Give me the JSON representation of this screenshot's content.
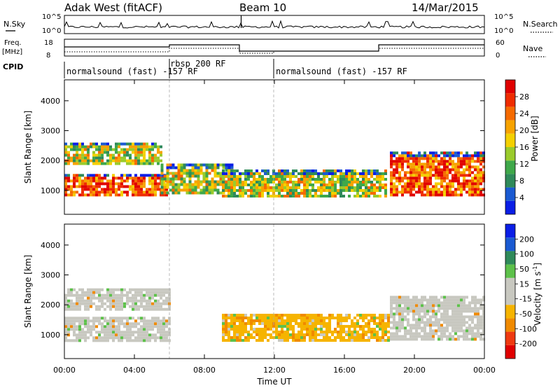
{
  "header": {
    "radar": "Adak West (fitACF)",
    "beam": "Beam 10",
    "date": "14/Mar/2015"
  },
  "top_panel": {
    "left_label": "N.Sky",
    "right_label": "N.Search",
    "left_ticks": [
      "10^5",
      "10^0"
    ],
    "right_ticks": [
      "10^5",
      "10^0"
    ]
  },
  "freq_panel": {
    "left_label_1": "Freq.",
    "left_label_2": "[MHz]",
    "right_label": "Nave",
    "left_ticks": [
      "18",
      "8"
    ],
    "right_ticks": [
      "60",
      "0"
    ]
  },
  "cpid_panel": {
    "label": "CPID",
    "segments": [
      {
        "text": "normalsound (fast) -157 RF",
        "start": 0
      },
      {
        "text": "rbsp 200 RF",
        "start": 6
      },
      {
        "text": "normalsound (fast) -157 RF",
        "start": 12
      }
    ]
  },
  "chart_data": [
    {
      "type": "heatmap",
      "name_in_image": "Power",
      "ylabel": "Slant Range [km]",
      "y_ticks": [
        "1000",
        "2000",
        "3000",
        "4000"
      ],
      "ylim": [
        200,
        4700
      ],
      "x_range_hours": [
        0,
        24
      ],
      "colorbar": {
        "label": "Power [dB]",
        "tick_labels": [
          "4",
          "8",
          "12",
          "16",
          "20",
          "24",
          "28"
        ],
        "colors": [
          "#0a1ee6",
          "#1a5ad2",
          "#2f8a5a",
          "#3fa84a",
          "#9acb2c",
          "#f4d000",
          "#f7a300",
          "#f56a00",
          "#ef2c00",
          "#e00000"
        ]
      },
      "echo_regions": [
        {
          "hours": [
            0.0,
            5.8
          ],
          "range_km": [
            800,
            1550
          ],
          "level": "high"
        },
        {
          "hours": [
            0.0,
            5.5
          ],
          "range_km": [
            1900,
            2600
          ],
          "level": "medium"
        },
        {
          "hours": [
            5.5,
            9.6
          ],
          "range_km": [
            900,
            1900
          ],
          "level": "medium"
        },
        {
          "hours": [
            9.0,
            18.3
          ],
          "range_km": [
            850,
            1700
          ],
          "level": "medium"
        },
        {
          "hours": [
            18.6,
            24.0
          ],
          "range_km": [
            800,
            2300
          ],
          "level": "high"
        }
      ]
    },
    {
      "type": "heatmap",
      "name_in_image": "Velocity",
      "ylabel": "Slant Range [km]",
      "y_ticks": [
        "1000",
        "2000",
        "3000",
        "4000"
      ],
      "ylim": [
        200,
        4700
      ],
      "x_range_hours": [
        0,
        24
      ],
      "colorbar": {
        "label_1": "Velocity",
        "label_2": "[m s",
        "label_sup": "-1",
        "label_3": "]",
        "tick_labels": [
          "-200",
          "-100",
          "-50",
          "-15",
          "15",
          "50",
          "100",
          "200"
        ],
        "colors": [
          "#e00000",
          "#ef3a10",
          "#f08a00",
          "#f6b400",
          "#c8c8c0",
          "#c8c8c0",
          "#5dc14a",
          "#2f8a5a",
          "#1a5ad2",
          "#0a1ee6"
        ]
      },
      "echo_regions": [
        {
          "hours": [
            0.0,
            6.0
          ],
          "range_km": [
            800,
            1600
          ],
          "level": "ground"
        },
        {
          "hours": [
            0.0,
            6.0
          ],
          "range_km": [
            1850,
            2550
          ],
          "level": "ground"
        },
        {
          "hours": [
            9.0,
            18.5
          ],
          "range_km": [
            800,
            1700
          ],
          "level": "negative"
        },
        {
          "hours": [
            18.6,
            24.0
          ],
          "range_km": [
            800,
            2300
          ],
          "level": "ground"
        }
      ]
    }
  ],
  "x_axis": {
    "ticks": [
      "00:00",
      "04:00",
      "08:00",
      "12:00",
      "16:00",
      "20:00",
      "00:00"
    ],
    "label": "Time UT"
  }
}
